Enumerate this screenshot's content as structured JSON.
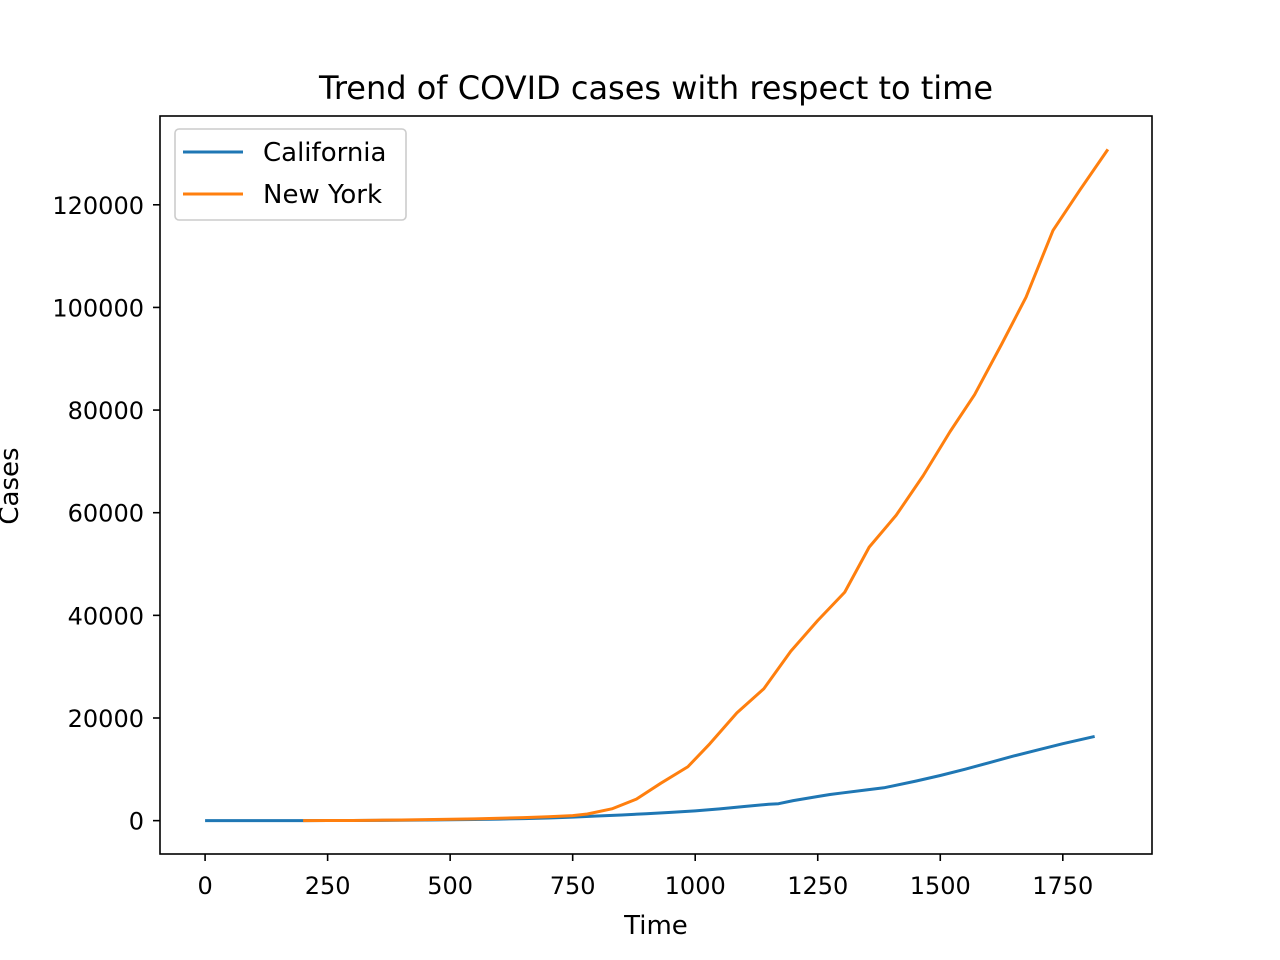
{
  "colors": {
    "california": "#1f77b4",
    "new_york": "#ff7f0e",
    "axes": "#000000",
    "legend_border": "#cccccc",
    "background": "#ffffff"
  },
  "chart_data": {
    "type": "line",
    "title": "Trend of COVID cases with respect to time",
    "xlabel": "Time",
    "ylabel": "Cases",
    "xlim": [
      -92,
      1932
    ],
    "ylim": [
      -6500,
      137300
    ],
    "xticks": [
      0,
      250,
      500,
      750,
      1000,
      1250,
      1500,
      1750
    ],
    "xtick_labels": [
      "0",
      "250",
      "500",
      "750",
      "1000",
      "1250",
      "1500",
      "1750"
    ],
    "yticks": [
      0,
      20000,
      40000,
      60000,
      80000,
      100000,
      120000
    ],
    "ytick_labels": [
      "0",
      "20000",
      "40000",
      "60000",
      "80000",
      "100000",
      "120000"
    ],
    "grid": false,
    "legend_position": "upper-left",
    "series": [
      {
        "name": "California",
        "color_key": "california",
        "x": [
          0,
          50,
          100,
          150,
          200,
          250,
          300,
          350,
          400,
          450,
          500,
          550,
          600,
          650,
          700,
          750,
          800,
          850,
          900,
          950,
          1000,
          1050,
          1100,
          1150,
          1170,
          1200,
          1250,
          1275,
          1300,
          1350,
          1385,
          1450,
          1500,
          1550,
          1600,
          1650,
          1700,
          1750,
          1815
        ],
        "y": [
          0,
          0,
          0,
          0,
          10,
          20,
          30,
          50,
          80,
          120,
          170,
          230,
          300,
          400,
          520,
          680,
          900,
          1100,
          1350,
          1600,
          1900,
          2300,
          2750,
          3200,
          3300,
          3900,
          4700,
          5100,
          5400,
          6000,
          6400,
          7700,
          8800,
          10000,
          11300,
          12600,
          13800,
          15000,
          16400
        ]
      },
      {
        "name": "New York",
        "color_key": "new_york",
        "x": [
          200,
          250,
          300,
          350,
          400,
          450,
          500,
          550,
          600,
          650,
          700,
          750,
          780,
          830,
          880,
          930,
          985,
          1030,
          1085,
          1140,
          1195,
          1250,
          1305,
          1355,
          1410,
          1465,
          1520,
          1570,
          1625,
          1675,
          1730,
          1785,
          1842
        ],
        "y": [
          0,
          20,
          40,
          80,
          130,
          190,
          260,
          350,
          460,
          590,
          760,
          980,
          1300,
          2300,
          4200,
          7300,
          10500,
          15000,
          21000,
          25700,
          33000,
          39000,
          44500,
          53300,
          59500,
          67200,
          75800,
          83000,
          92800,
          102000,
          115000,
          122900,
          130800
        ]
      }
    ]
  }
}
